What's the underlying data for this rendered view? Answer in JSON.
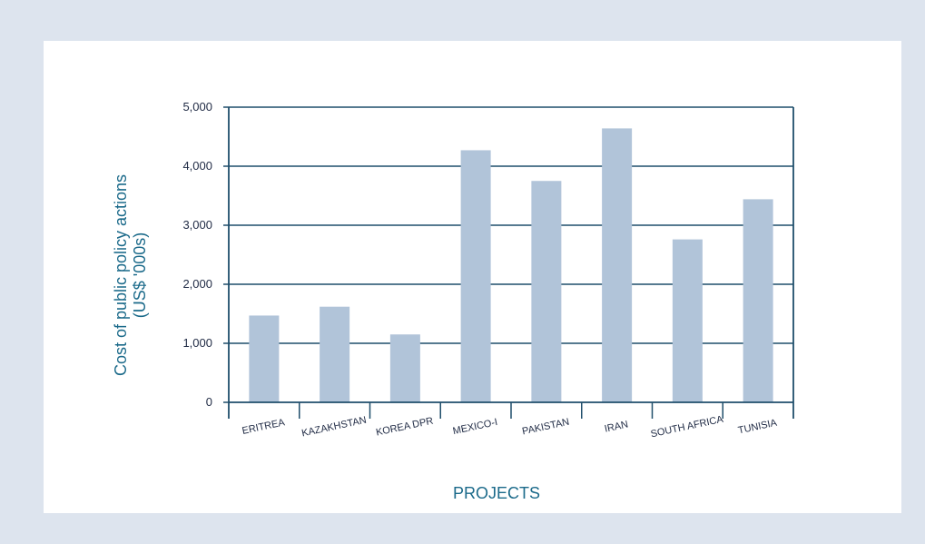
{
  "chart_data": {
    "type": "bar",
    "categories": [
      "ERITREA",
      "KAZAKHSTAN",
      "KOREA DPR",
      "MEXICO-I",
      "PAKISTAN",
      "IRAN",
      "SOUTH AFRICA",
      "TUNISIA"
    ],
    "values": [
      1470,
      1620,
      1150,
      4270,
      3750,
      4640,
      2760,
      3440
    ],
    "title": "",
    "xlabel": "PROJECTS",
    "ylabel_line1": "Cost of public policy actions",
    "ylabel_line2": "(US$ '000s)",
    "ylim": [
      0,
      5000
    ],
    "yticks": [
      0,
      1000,
      2000,
      3000,
      4000,
      5000
    ],
    "ytick_labels": [
      "0",
      "1,000",
      "2,000",
      "3,000",
      "4,000",
      "5,000"
    ],
    "grid": true,
    "colors": {
      "bar": "#b1c4d9",
      "axis": "#1f4e6b",
      "title": "#1b6a8a",
      "background": "#dde4ee",
      "panel": "#ffffff"
    }
  }
}
